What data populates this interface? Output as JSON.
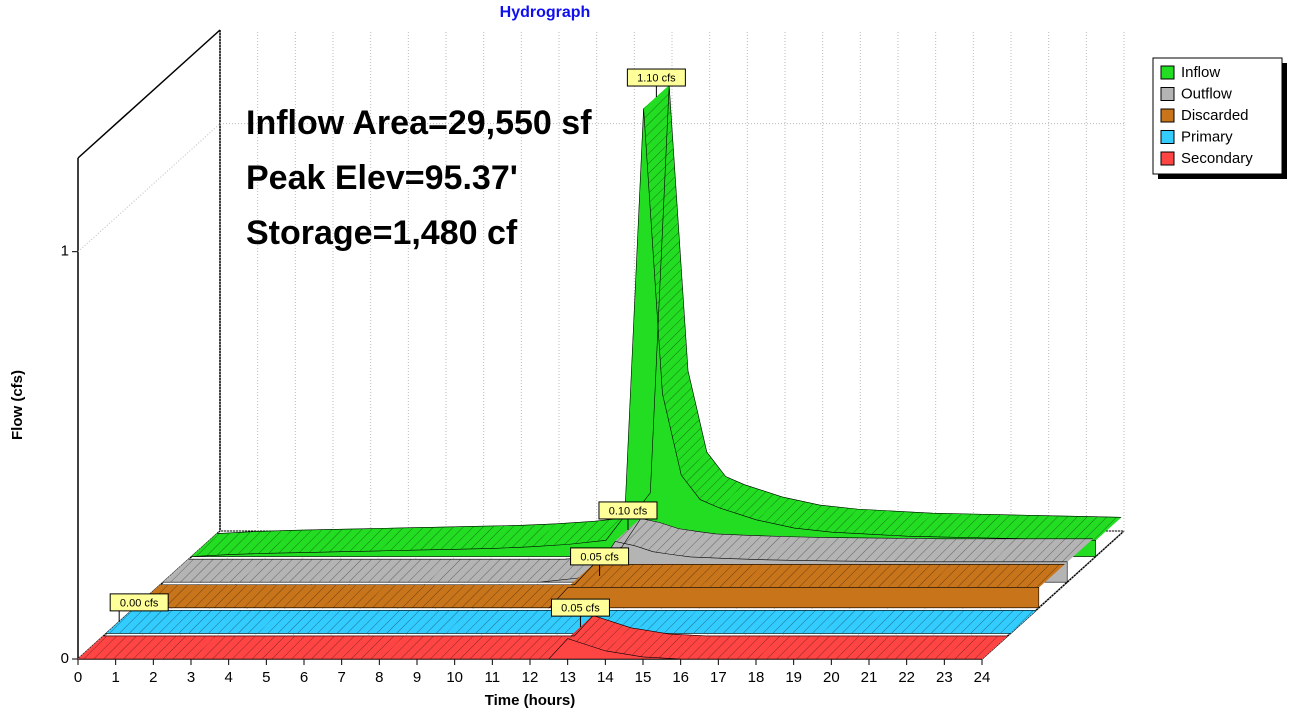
{
  "chart_data": {
    "type": "hydrograph3d",
    "title": "Hydrograph",
    "x_label": "Time  (hours)",
    "y_label": "Flow  (cfs)",
    "annotations": [
      "Inflow Area=29,550 sf",
      "Peak Elev=95.37'",
      "Storage=1,480 cf"
    ],
    "x": [
      0,
      1,
      2,
      3,
      4,
      5,
      6,
      7,
      8,
      9,
      10,
      11,
      11.5,
      12,
      12.5,
      13,
      13.5,
      14,
      15,
      16,
      17,
      18,
      19,
      20,
      21,
      22,
      23,
      24
    ],
    "series": [
      {
        "name": "Inflow",
        "color": "#22dd22",
        "values": [
          0,
          0.005,
          0.008,
          0.01,
          0.012,
          0.014,
          0.016,
          0.018,
          0.02,
          0.024,
          0.03,
          0.04,
          0.1,
          1.1,
          0.4,
          0.2,
          0.14,
          0.12,
          0.09,
          0.07,
          0.06,
          0.055,
          0.05,
          0.048,
          0.046,
          0.044,
          0.042,
          0.04
        ],
        "value_labels": [
          null,
          null,
          null,
          null,
          null,
          null,
          null,
          null,
          null,
          null,
          null,
          null,
          null,
          "1.10 cfs",
          null,
          null,
          null,
          null,
          null,
          null,
          null,
          null,
          null,
          null,
          null,
          null,
          null,
          null
        ]
      },
      {
        "name": "Outflow",
        "color": "#b4b4b4",
        "values": [
          0,
          0,
          0,
          0,
          0,
          0,
          0,
          0,
          0,
          0,
          0,
          0.01,
          0.03,
          0.1,
          0.09,
          0.075,
          0.068,
          0.062,
          0.058,
          0.055,
          0.053,
          0.052,
          0.051,
          0.05,
          0.05,
          0.05,
          0.05,
          0.05
        ],
        "value_labels": [
          null,
          null,
          null,
          null,
          null,
          null,
          null,
          null,
          null,
          null,
          null,
          null,
          null,
          "0.10 cfs",
          null,
          null,
          null,
          null,
          null,
          null,
          null,
          null,
          null,
          null,
          null,
          null,
          null,
          null
        ]
      },
      {
        "name": "Discarded",
        "color": "#c8741a",
        "values": [
          0,
          0,
          0,
          0,
          0,
          0,
          0,
          0,
          0,
          0,
          0,
          0,
          0.05,
          0.05,
          0.05,
          0.05,
          0.05,
          0.05,
          0.05,
          0.05,
          0.05,
          0.05,
          0.05,
          0.05,
          0.05,
          0.05,
          0.05,
          0.05
        ],
        "value_labels": [
          null,
          null,
          null,
          null,
          null,
          null,
          null,
          null,
          null,
          null,
          null,
          null,
          null,
          "0.05 cfs",
          null,
          null,
          null,
          null,
          null,
          null,
          null,
          null,
          null,
          null,
          null,
          null,
          null,
          null
        ]
      },
      {
        "name": "Primary",
        "color": "#33ccff",
        "values": [
          0,
          0,
          0,
          0,
          0,
          0,
          0,
          0,
          0,
          0,
          0,
          0,
          0,
          0,
          0,
          0,
          0,
          0,
          0,
          0,
          0,
          0,
          0,
          0,
          0,
          0,
          0,
          0
        ],
        "value_labels": [
          "0.00 cfs",
          null,
          null,
          null,
          null,
          null,
          null,
          null,
          null,
          null,
          null,
          null,
          null,
          null,
          null,
          null,
          null,
          null,
          null,
          null,
          null,
          null,
          null,
          null,
          null,
          null,
          null,
          null
        ]
      },
      {
        "name": "Secondary",
        "color": "#ff4444",
        "values": [
          0,
          0,
          0,
          0,
          0,
          0,
          0,
          0,
          0,
          0,
          0,
          0,
          0,
          0,
          0,
          0.05,
          0.035,
          0.02,
          0.005,
          0,
          0,
          0,
          0,
          0,
          0,
          0,
          0,
          0
        ],
        "value_labels": [
          null,
          null,
          null,
          null,
          null,
          null,
          null,
          null,
          null,
          null,
          null,
          null,
          null,
          null,
          null,
          "0.05 cfs",
          null,
          null,
          null,
          null,
          null,
          null,
          null,
          null,
          null,
          null,
          null,
          null
        ]
      }
    ],
    "xlim": [
      0,
      24
    ],
    "xticks": [
      0,
      1,
      2,
      3,
      4,
      5,
      6,
      7,
      8,
      9,
      10,
      11,
      12,
      13,
      14,
      15,
      16,
      17,
      18,
      19,
      20,
      21,
      22,
      23,
      24
    ],
    "ylim": [
      0,
      1.23
    ],
    "yticks": [
      0,
      1
    ],
    "grid": true,
    "legend": "top-right"
  }
}
